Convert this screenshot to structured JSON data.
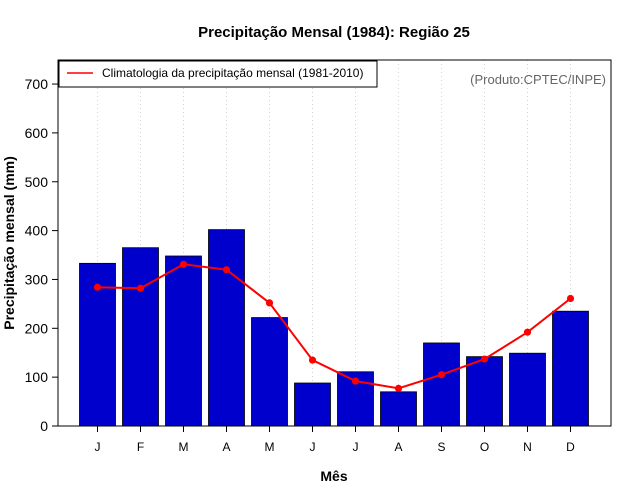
{
  "chart_data": {
    "type": "bar",
    "title": "Precipitação Mensal (1984): Região 25",
    "xlabel": "Mês",
    "ylabel": "Precipitação mensal (mm)",
    "categories": [
      "J",
      "F",
      "M",
      "A",
      "M",
      "J",
      "J",
      "A",
      "S",
      "O",
      "N",
      "D"
    ],
    "ylim": [
      0,
      750
    ],
    "yticks": [
      0,
      100,
      200,
      300,
      400,
      500,
      600,
      700
    ],
    "grid": "vertical dotted",
    "series": [
      {
        "name": "Precipitação mensal 1984",
        "kind": "bar",
        "color": "#0000cc",
        "values": [
          333,
          365,
          348,
          402,
          222,
          88,
          111,
          70,
          170,
          142,
          149,
          235
        ]
      },
      {
        "name": "Climatologia da precipitação mensal (1981-2010)",
        "kind": "line",
        "color": "#ff0000",
        "values": [
          284,
          282,
          331,
          320,
          252,
          135,
          92,
          77,
          105,
          137,
          192,
          261
        ]
      }
    ],
    "legend": {
      "position": "top-left",
      "entries": [
        "Climatologia da precipitação mensal (1981-2010)"
      ]
    },
    "annotation": "(Produto:CPTEC/INPE)"
  }
}
